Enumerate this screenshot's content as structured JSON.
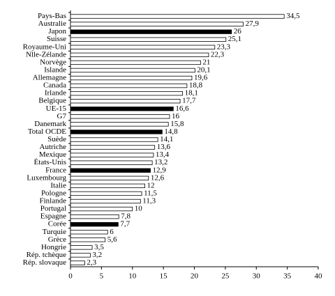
{
  "chart_data": {
    "type": "hbar",
    "categories": [
      "Pays-Bas",
      "Australie",
      "Japon",
      "Suisse",
      "Royaume-Uni",
      "Nlle-Zélande",
      "Norvège",
      "Islande",
      "Allemagne",
      "Canada",
      "Irlande",
      "Belgique",
      "UE-15",
      "G7",
      "Danemark",
      "Total OCDE",
      "Suède",
      "Autriche",
      "Mexique",
      "États-Unis",
      "France",
      "Luxembourg",
      "Italie",
      "Pologne",
      "Finlande",
      "Portugal",
      "Espagne",
      "Corée",
      "Turquie",
      "Grèce",
      "Hongrie",
      "Rép. tchèque",
      "Rép. slovaque"
    ],
    "values": [
      34.5,
      27.9,
      26,
      25.1,
      23.3,
      22.3,
      21,
      20.1,
      19.6,
      18.8,
      18.1,
      17.7,
      16.6,
      16,
      15.8,
      14.8,
      14.1,
      13.6,
      13.4,
      13.2,
      12.9,
      12.6,
      12,
      11.5,
      11.3,
      10,
      7.8,
      7.7,
      6,
      5.6,
      3.5,
      3.2,
      2.3
    ],
    "value_labels": [
      "34,5",
      "27,9",
      "26",
      "25,1",
      "23,3",
      "22,3",
      "21",
      "20,1",
      "19,6",
      "18,8",
      "18,1",
      "17,7",
      "16,6",
      "16",
      "15,8",
      "14,8",
      "14,1",
      "13,6",
      "13,4",
      "13,2",
      "12,9",
      "12,6",
      "12",
      "11,5",
      "11,3",
      "10",
      "7,8",
      "7,7",
      "6",
      "5,6",
      "3,5",
      "3,2",
      "2,3"
    ],
    "colors": [
      "#ffffff",
      "#ffffff",
      "#000000",
      "#ffffff",
      "#ffffff",
      "#ffffff",
      "#ffffff",
      "#ffffff",
      "#ffffff",
      "#ffffff",
      "#ffffff",
      "#ffffff",
      "#000000",
      "#ffffff",
      "#ffffff",
      "#000000",
      "#ffffff",
      "#ffffff",
      "#ffffff",
      "#ffffff",
      "#000000",
      "#ffffff",
      "#ffffff",
      "#ffffff",
      "#ffffff",
      "#ffffff",
      "#ffffff",
      "#000000",
      "#ffffff",
      "#ffffff",
      "#ffffff",
      "#ffffff",
      "#ffffff"
    ],
    "xlim": [
      0,
      40
    ],
    "xticks": [
      0,
      5,
      10,
      15,
      20,
      25,
      30,
      35,
      40
    ]
  }
}
